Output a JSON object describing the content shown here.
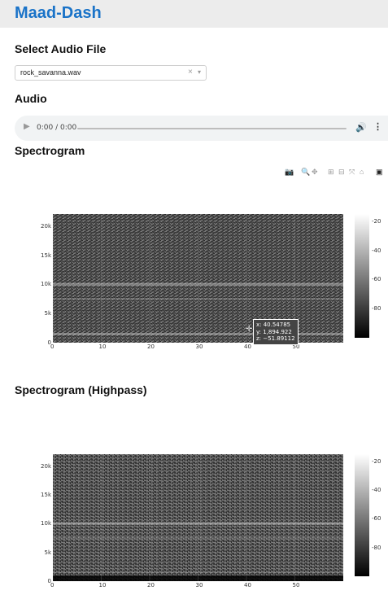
{
  "header": {
    "title": "Maad-Dash"
  },
  "select_section": {
    "heading": "Select Audio File"
  },
  "file_select": {
    "value": "rock_savanna.wav",
    "clear_glyph": "×",
    "arrow_glyph": "▾"
  },
  "audio_section": {
    "heading": "Audio"
  },
  "audio_player": {
    "play_glyph": "▶",
    "time": "0:00 / 0:00",
    "volume_glyph": "🔊",
    "more_glyph": "⋮",
    "progress": 0
  },
  "spectrogram_section": {
    "heading": "Spectrogram"
  },
  "highpass_section": {
    "heading": "Spectrogram (Highpass)"
  },
  "modebar": {
    "icons": [
      {
        "name": "camera-icon",
        "glyph": "📷"
      },
      {
        "name": "zoom-icon",
        "glyph": "🔍"
      },
      {
        "name": "pan-icon",
        "glyph": "✥"
      },
      {
        "name": "zoom-in-icon",
        "glyph": "⊞"
      },
      {
        "name": "zoom-out-icon",
        "glyph": "⊟"
      },
      {
        "name": "autoscale-icon",
        "glyph": "⤧"
      },
      {
        "name": "reset-axes-icon",
        "glyph": "⌂"
      },
      {
        "name": "plotly-logo-icon",
        "glyph": "▣"
      }
    ]
  },
  "chart_data": [
    {
      "type": "heatmap",
      "title": "",
      "x_ticks": [
        "0",
        "10",
        "20",
        "30",
        "40",
        "50"
      ],
      "x_tick_values": [
        0,
        10,
        20,
        30,
        40,
        50
      ],
      "xlim": [
        0,
        60
      ],
      "y_ticks": [
        "0",
        "5k",
        "10k",
        "15k",
        "20k"
      ],
      "y_tick_values": [
        0,
        5000,
        10000,
        15000,
        20000
      ],
      "ylim": [
        0,
        22050
      ],
      "colorbar_ticks": [
        "-20",
        "-40",
        "-60",
        "-80"
      ],
      "colorbar_values": [
        -20,
        -40,
        -60,
        -80
      ],
      "colorbar_range": [
        -100,
        -15
      ],
      "colorscale": [
        "#000000",
        "#ffffff"
      ],
      "tooltip": {
        "x": "x: 40.54785",
        "y": "y: 1,894.922",
        "z": "z: −51.89112"
      }
    },
    {
      "type": "heatmap",
      "title": "",
      "x_ticks": [
        "0",
        "10",
        "20",
        "30",
        "40",
        "50"
      ],
      "x_tick_values": [
        0,
        10,
        20,
        30,
        40,
        50
      ],
      "xlim": [
        0,
        60
      ],
      "y_ticks": [
        "0",
        "5k",
        "10k",
        "15k",
        "20k"
      ],
      "y_tick_values": [
        0,
        5000,
        10000,
        15000,
        20000
      ],
      "ylim": [
        0,
        22050
      ],
      "colorbar_ticks": [
        "-20",
        "-40",
        "-60",
        "-80"
      ],
      "colorbar_values": [
        -20,
        -40,
        -60,
        -80
      ],
      "colorbar_range": [
        -100,
        -15
      ],
      "colorscale": [
        "#000000",
        "#ffffff"
      ]
    }
  ]
}
